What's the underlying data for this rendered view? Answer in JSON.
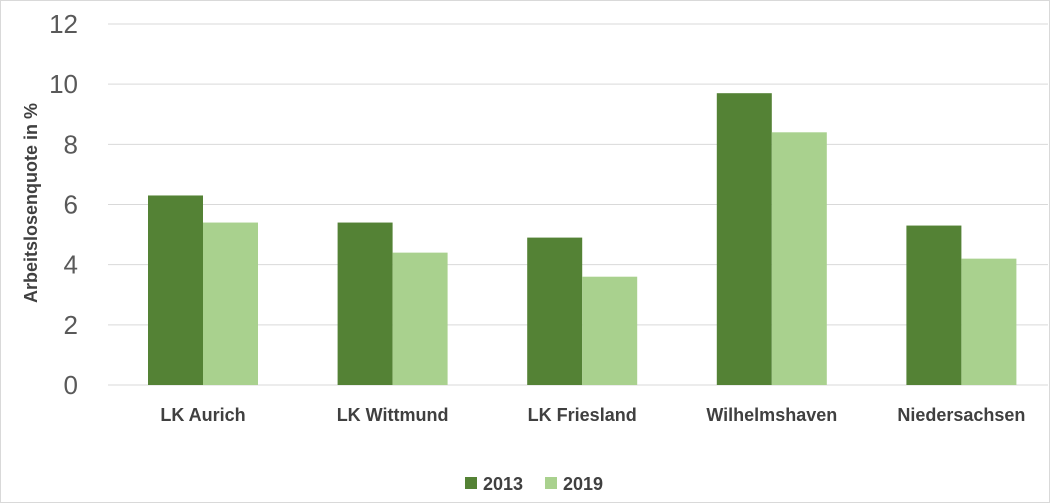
{
  "chart_data": {
    "type": "bar",
    "ylabel": "Arbeitslosenquote in %",
    "ylim": [
      0,
      12
    ],
    "yticks": [
      0,
      2,
      4,
      6,
      8,
      10,
      12
    ],
    "categories": [
      "LK Aurich",
      "LK Wittmund",
      "LK Friesland",
      "Wilhelmshaven",
      "Niedersachsen"
    ],
    "series": [
      {
        "name": "2013",
        "color": "#548235",
        "values": [
          6.3,
          5.4,
          4.9,
          9.7,
          5.3
        ]
      },
      {
        "name": "2019",
        "color": "#a9d18e",
        "values": [
          5.4,
          4.4,
          3.6,
          8.4,
          4.2
        ]
      }
    ],
    "grid": true,
    "legend": "bottom"
  }
}
